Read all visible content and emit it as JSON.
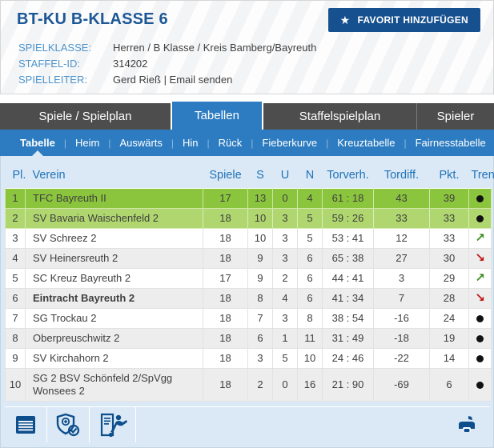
{
  "header": {
    "title": "BT-KU B-KLASSE 6",
    "favorite_button": "FAVORIT HINZUFÜGEN",
    "star_icon": "★",
    "info": [
      {
        "label": "SPIELKLASSE:",
        "value": "Herren / B Klasse / Kreis Bamberg/Bayreuth",
        "interactable": false
      },
      {
        "label": "STAFFEL-ID:",
        "value": "314202",
        "interactable": false
      },
      {
        "label": "SPIELLEITER:",
        "value": "Gerd Rieß | Email senden",
        "interactable": true
      }
    ]
  },
  "tabs": [
    {
      "label": "Spiele / Spielplan",
      "active": false
    },
    {
      "label": "Tabellen",
      "active": true
    },
    {
      "label": "Staffelspielplan",
      "active": false
    },
    {
      "label": "Spieler",
      "active": false
    }
  ],
  "subnav": {
    "separator": "|",
    "items": [
      {
        "label": "Tabelle",
        "active": true
      },
      {
        "label": "Heim",
        "active": false
      },
      {
        "label": "Auswärts",
        "active": false
      },
      {
        "label": "Hin",
        "active": false
      },
      {
        "label": "Rück",
        "active": false
      },
      {
        "label": "Fieberkurve",
        "active": false
      },
      {
        "label": "Kreuztabelle",
        "active": false
      },
      {
        "label": "Fairnesstabelle",
        "active": false
      }
    ]
  },
  "table": {
    "columns": [
      "Pl.",
      "Verein",
      "Spiele",
      "S",
      "U",
      "N",
      "Torverh.",
      "Tordiff.",
      "Pkt.",
      "Trend"
    ],
    "rows": [
      {
        "pl": "1",
        "verein": "TFC Bayreuth II",
        "spiele": "17",
        "s": "13",
        "u": "0",
        "n": "4",
        "torverh": "61 : 18",
        "tordiff": "43",
        "pkt": "39",
        "trend": "steady",
        "highlight": "rank1",
        "bold": false
      },
      {
        "pl": "2",
        "verein": "SV Bavaria Waischenfeld 2",
        "spiele": "18",
        "s": "10",
        "u": "3",
        "n": "5",
        "torverh": "59 : 26",
        "tordiff": "33",
        "pkt": "33",
        "trend": "steady",
        "highlight": "rank2",
        "bold": false
      },
      {
        "pl": "3",
        "verein": "SV Schreez 2",
        "spiele": "18",
        "s": "10",
        "u": "3",
        "n": "5",
        "torverh": "53 : 41",
        "tordiff": "12",
        "pkt": "33",
        "trend": "up",
        "highlight": "",
        "bold": false
      },
      {
        "pl": "4",
        "verein": "SV Heinersreuth 2",
        "spiele": "18",
        "s": "9",
        "u": "3",
        "n": "6",
        "torverh": "65 : 38",
        "tordiff": "27",
        "pkt": "30",
        "trend": "down",
        "highlight": "alt",
        "bold": false
      },
      {
        "pl": "5",
        "verein": "SC Kreuz Bayreuth 2",
        "spiele": "17",
        "s": "9",
        "u": "2",
        "n": "6",
        "torverh": "44 : 41",
        "tordiff": "3",
        "pkt": "29",
        "trend": "up",
        "highlight": "",
        "bold": false
      },
      {
        "pl": "6",
        "verein": "Eintracht Bayreuth 2",
        "spiele": "18",
        "s": "8",
        "u": "4",
        "n": "6",
        "torverh": "41 : 34",
        "tordiff": "7",
        "pkt": "28",
        "trend": "down",
        "highlight": "alt",
        "bold": true
      },
      {
        "pl": "7",
        "verein": "SG Trockau 2",
        "spiele": "18",
        "s": "7",
        "u": "3",
        "n": "8",
        "torverh": "38 : 54",
        "tordiff": "-16",
        "pkt": "24",
        "trend": "steady",
        "highlight": "",
        "bold": false
      },
      {
        "pl": "8",
        "verein": "Oberpreuschwitz 2",
        "spiele": "18",
        "s": "6",
        "u": "1",
        "n": "11",
        "torverh": "31 : 49",
        "tordiff": "-18",
        "pkt": "19",
        "trend": "steady",
        "highlight": "alt",
        "bold": false
      },
      {
        "pl": "9",
        "verein": "SV Kirchahorn 2",
        "spiele": "18",
        "s": "3",
        "u": "5",
        "n": "10",
        "torverh": "24 : 46",
        "tordiff": "-22",
        "pkt": "14",
        "trend": "steady",
        "highlight": "",
        "bold": false
      },
      {
        "pl": "10",
        "verein": "SG 2 BSV Schönfeld 2/SpVgg Wonsees 2",
        "spiele": "18",
        "s": "2",
        "u": "0",
        "n": "16",
        "torverh": "21 : 90",
        "tordiff": "-69",
        "pkt": "6",
        "trend": "steady",
        "highlight": "alt",
        "bold": false
      }
    ]
  },
  "toolbar": {
    "icons": [
      "table-grid-icon",
      "shield-check-icon",
      "match-report-player-icon",
      "printer-icon"
    ]
  },
  "colors": {
    "accent_blue": "#2d7cc1",
    "dark_blue": "#16508f",
    "tab_gray": "#4d4d4d",
    "content_bg": "#dbe9f6",
    "rank1_green": "#8bc53e",
    "rank2_green": "#b0d76f",
    "trend_up": "#3a8a1e",
    "trend_down": "#c01414"
  }
}
